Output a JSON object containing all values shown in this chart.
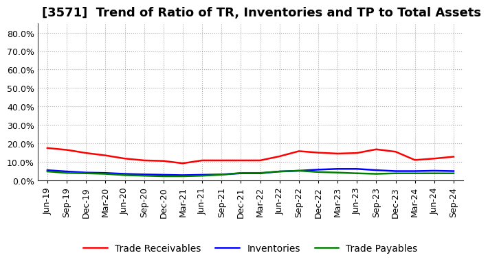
{
  "title": "[3571]  Trend of Ratio of TR, Inventories and TP to Total Assets",
  "x_labels": [
    "Jun-19",
    "Sep-19",
    "Dec-19",
    "Mar-20",
    "Jun-20",
    "Sep-20",
    "Dec-20",
    "Mar-21",
    "Jun-21",
    "Sep-21",
    "Dec-21",
    "Mar-22",
    "Jun-22",
    "Sep-22",
    "Dec-22",
    "Mar-23",
    "Jun-23",
    "Sep-23",
    "Dec-23",
    "Mar-24",
    "Jun-24",
    "Sep-24"
  ],
  "trade_receivables": [
    0.175,
    0.165,
    0.148,
    0.135,
    0.118,
    0.108,
    0.105,
    0.092,
    0.108,
    0.108,
    0.108,
    0.108,
    0.13,
    0.158,
    0.15,
    0.145,
    0.148,
    0.168,
    0.155,
    0.11,
    0.118,
    0.128
  ],
  "inventories": [
    0.055,
    0.048,
    0.042,
    0.04,
    0.035,
    0.032,
    0.03,
    0.028,
    0.03,
    0.032,
    0.038,
    0.038,
    0.048,
    0.052,
    0.058,
    0.062,
    0.062,
    0.055,
    0.05,
    0.05,
    0.052,
    0.05
  ],
  "trade_payables": [
    0.048,
    0.04,
    0.038,
    0.035,
    0.028,
    0.025,
    0.022,
    0.022,
    0.025,
    0.03,
    0.04,
    0.04,
    0.048,
    0.052,
    0.045,
    0.042,
    0.038,
    0.035,
    0.038,
    0.038,
    0.038,
    0.038
  ],
  "tr_color": "#ff0000",
  "inv_color": "#0000ff",
  "tp_color": "#008000",
  "ylim": [
    0.0,
    0.85
  ],
  "yticks": [
    0.0,
    0.1,
    0.2,
    0.3,
    0.4,
    0.5,
    0.6,
    0.7,
    0.8
  ],
  "legend_labels": [
    "Trade Receivables",
    "Inventories",
    "Trade Payables"
  ],
  "background_color": "#ffffff",
  "grid_color": "#aaaaaa",
  "title_fontsize": 13,
  "tick_fontsize": 9,
  "legend_fontsize": 10
}
